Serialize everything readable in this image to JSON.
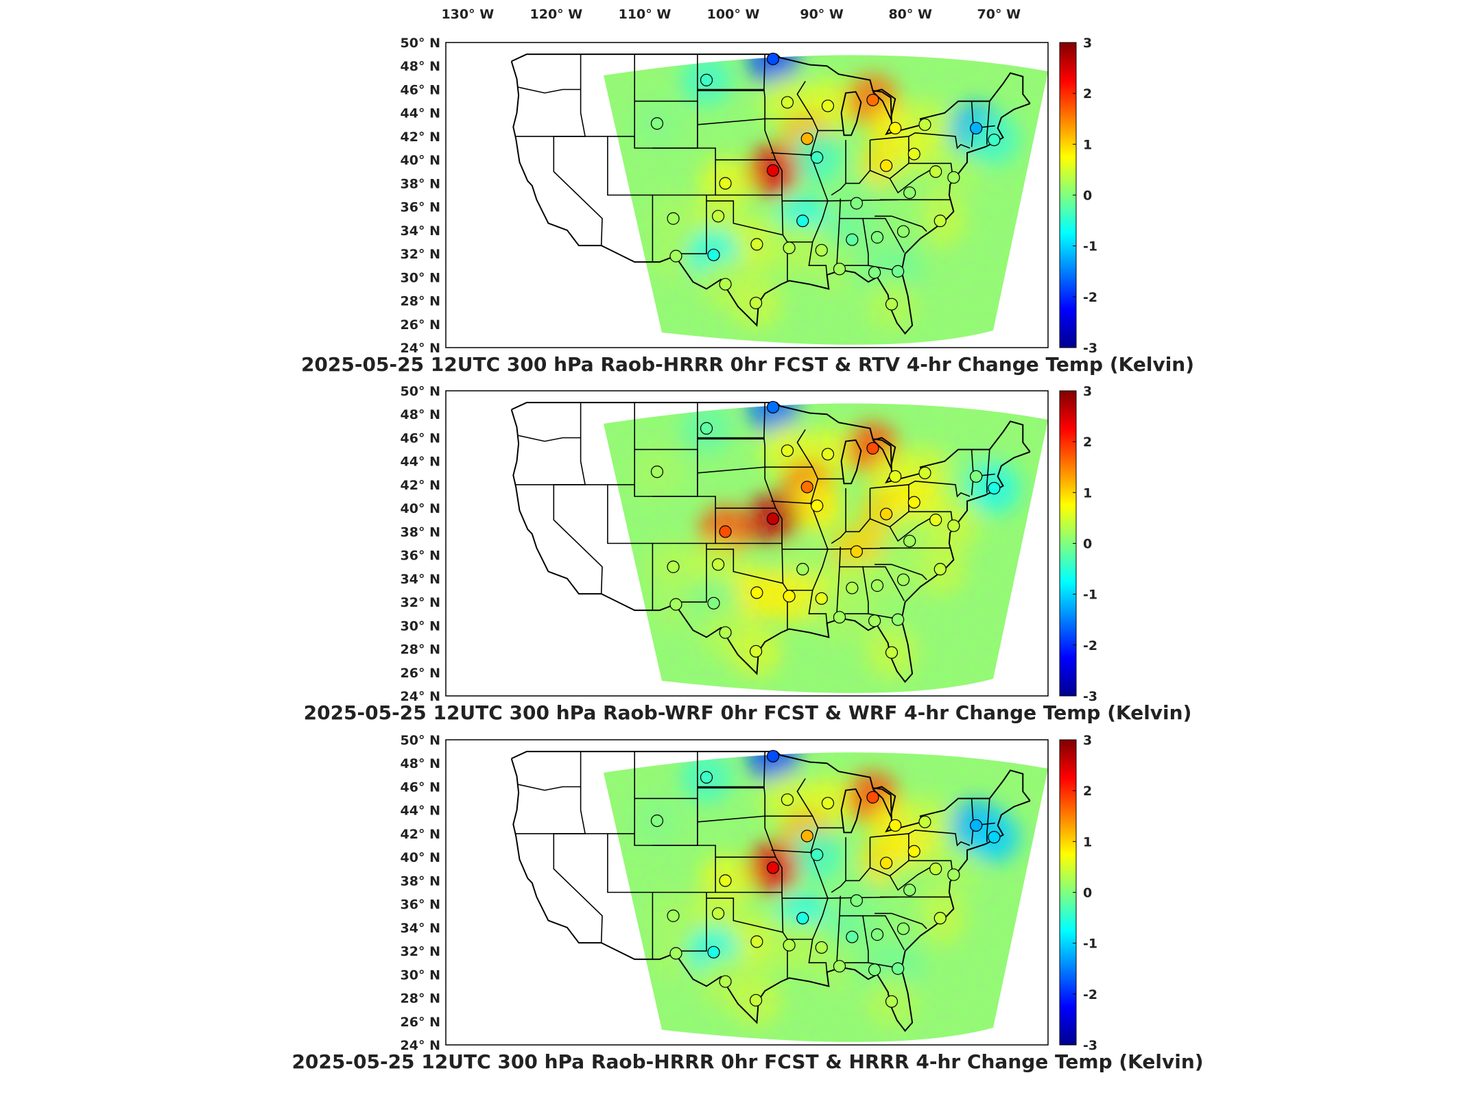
{
  "longitude_ticks": [
    "130° W",
    "120° W",
    "110° W",
    "100° W",
    "90° W",
    "80° W",
    "70° W"
  ],
  "latitude_ticks": [
    "50° N",
    "48° N",
    "46° N",
    "44° N",
    "42° N",
    "40° N",
    "38° N",
    "36° N",
    "34° N",
    "32° N",
    "30° N",
    "28° N",
    "26° N",
    "24° N"
  ],
  "colorbar": {
    "ticks": [
      "3",
      "2",
      "1",
      "0",
      "-1",
      "-2",
      "-3"
    ],
    "min": -3,
    "max": 3,
    "colormap": "jet"
  },
  "panels": [
    {
      "title": "2025-05-25 12UTC 300 hPa Raob-HRRR 0hr FCST & RTV 4-hr Change Temp (Kelvin)",
      "stations": [
        {
          "lon": -95.6,
          "lat": 48.6,
          "value": -1.8
        },
        {
          "lon": -103.0,
          "lat": 46.8,
          "value": -0.4
        },
        {
          "lon": -108.5,
          "lat": 43.1,
          "value": 0.0
        },
        {
          "lon": -94.0,
          "lat": 44.9,
          "value": 0.5
        },
        {
          "lon": -89.5,
          "lat": 44.6,
          "value": 0.6
        },
        {
          "lon": -84.5,
          "lat": 45.1,
          "value": 1.6
        },
        {
          "lon": -82.0,
          "lat": 42.7,
          "value": 0.8
        },
        {
          "lon": -78.7,
          "lat": 43.0,
          "value": 0.4
        },
        {
          "lon": -73.0,
          "lat": 42.7,
          "value": -1.2
        },
        {
          "lon": -71.0,
          "lat": 41.7,
          "value": -0.4
        },
        {
          "lon": -91.8,
          "lat": 41.8,
          "value": 1.2
        },
        {
          "lon": -90.7,
          "lat": 40.2,
          "value": -0.4
        },
        {
          "lon": -83.0,
          "lat": 39.5,
          "value": 0.9
        },
        {
          "lon": -79.9,
          "lat": 40.5,
          "value": 0.6
        },
        {
          "lon": -95.6,
          "lat": 39.1,
          "value": 2.4
        },
        {
          "lon": -100.9,
          "lat": 38.0,
          "value": 0.6
        },
        {
          "lon": -77.5,
          "lat": 39.0,
          "value": 0.4
        },
        {
          "lon": -75.5,
          "lat": 38.5,
          "value": 0.2
        },
        {
          "lon": -86.3,
          "lat": 36.3,
          "value": 0.0
        },
        {
          "lon": -80.4,
          "lat": 37.2,
          "value": 0.1
        },
        {
          "lon": -106.7,
          "lat": 35.0,
          "value": 0.2
        },
        {
          "lon": -101.7,
          "lat": 35.2,
          "value": 0.4
        },
        {
          "lon": -92.3,
          "lat": 34.8,
          "value": -0.6
        },
        {
          "lon": -77.0,
          "lat": 34.8,
          "value": 0.4
        },
        {
          "lon": -97.4,
          "lat": 32.8,
          "value": 0.5
        },
        {
          "lon": -93.8,
          "lat": 32.5,
          "value": 0.3
        },
        {
          "lon": -90.2,
          "lat": 32.3,
          "value": 0.3
        },
        {
          "lon": -86.8,
          "lat": 33.2,
          "value": -0.2
        },
        {
          "lon": -84.0,
          "lat": 33.4,
          "value": 0.0
        },
        {
          "lon": -81.1,
          "lat": 33.9,
          "value": 0.1
        },
        {
          "lon": -106.4,
          "lat": 31.8,
          "value": 0.2
        },
        {
          "lon": -102.2,
          "lat": 31.9,
          "value": -0.6
        },
        {
          "lon": -88.2,
          "lat": 30.7,
          "value": 0.2
        },
        {
          "lon": -84.3,
          "lat": 30.4,
          "value": 0.0
        },
        {
          "lon": -81.7,
          "lat": 30.5,
          "value": -0.1
        },
        {
          "lon": -100.9,
          "lat": 29.4,
          "value": 0.3
        },
        {
          "lon": -97.5,
          "lat": 27.8,
          "value": 0.4
        },
        {
          "lon": -82.4,
          "lat": 27.7,
          "value": 0.3
        }
      ]
    },
    {
      "title": "2025-05-25 12UTC 300 hPa Raob-WRF 0hr FCST & WRF 4-hr Change Temp (Kelvin)",
      "stations": [
        {
          "lon": -95.6,
          "lat": 48.6,
          "value": -1.6
        },
        {
          "lon": -103.0,
          "lat": 46.8,
          "value": -0.2
        },
        {
          "lon": -108.5,
          "lat": 43.1,
          "value": 0.2
        },
        {
          "lon": -94.0,
          "lat": 44.9,
          "value": 0.6
        },
        {
          "lon": -89.5,
          "lat": 44.6,
          "value": 0.6
        },
        {
          "lon": -84.5,
          "lat": 45.1,
          "value": 1.8
        },
        {
          "lon": -82.0,
          "lat": 42.7,
          "value": 0.6
        },
        {
          "lon": -78.7,
          "lat": 43.0,
          "value": 0.5
        },
        {
          "lon": -73.0,
          "lat": 42.7,
          "value": 0.0
        },
        {
          "lon": -71.0,
          "lat": 41.7,
          "value": -0.6
        },
        {
          "lon": -91.8,
          "lat": 41.8,
          "value": 1.6
        },
        {
          "lon": -90.7,
          "lat": 40.2,
          "value": 0.8
        },
        {
          "lon": -83.0,
          "lat": 39.5,
          "value": 1.0
        },
        {
          "lon": -79.9,
          "lat": 40.5,
          "value": 0.8
        },
        {
          "lon": -95.6,
          "lat": 39.1,
          "value": 2.6
        },
        {
          "lon": -100.9,
          "lat": 38.0,
          "value": 1.8
        },
        {
          "lon": -77.5,
          "lat": 39.0,
          "value": 0.6
        },
        {
          "lon": -75.5,
          "lat": 38.5,
          "value": 0.4
        },
        {
          "lon": -86.3,
          "lat": 36.3,
          "value": 1.0
        },
        {
          "lon": -80.4,
          "lat": 37.2,
          "value": 0.2
        },
        {
          "lon": -106.7,
          "lat": 35.0,
          "value": 0.3
        },
        {
          "lon": -101.7,
          "lat": 35.2,
          "value": 0.4
        },
        {
          "lon": -92.3,
          "lat": 34.8,
          "value": 0.2
        },
        {
          "lon": -77.0,
          "lat": 34.8,
          "value": 0.4
        },
        {
          "lon": -97.4,
          "lat": 32.8,
          "value": 0.8
        },
        {
          "lon": -93.8,
          "lat": 32.5,
          "value": 0.8
        },
        {
          "lon": -90.2,
          "lat": 32.3,
          "value": 0.6
        },
        {
          "lon": -86.8,
          "lat": 33.2,
          "value": 0.3
        },
        {
          "lon": -84.0,
          "lat": 33.4,
          "value": 0.2
        },
        {
          "lon": -81.1,
          "lat": 33.9,
          "value": 0.2
        },
        {
          "lon": -106.4,
          "lat": 31.8,
          "value": 0.2
        },
        {
          "lon": -102.2,
          "lat": 31.9,
          "value": 0.0
        },
        {
          "lon": -88.2,
          "lat": 30.7,
          "value": 0.2
        },
        {
          "lon": -84.3,
          "lat": 30.4,
          "value": 0.2
        },
        {
          "lon": -81.7,
          "lat": 30.5,
          "value": 0.1
        },
        {
          "lon": -100.9,
          "lat": 29.4,
          "value": 0.3
        },
        {
          "lon": -97.5,
          "lat": 27.8,
          "value": 0.5
        },
        {
          "lon": -82.4,
          "lat": 27.7,
          "value": 0.4
        }
      ]
    },
    {
      "title": "2025-05-25 12UTC 300 hPa Raob-HRRR 0hr FCST & HRRR 4-hr Change Temp (Kelvin)",
      "stations": [
        {
          "lon": -95.6,
          "lat": 48.6,
          "value": -1.8
        },
        {
          "lon": -103.0,
          "lat": 46.8,
          "value": -0.4
        },
        {
          "lon": -108.5,
          "lat": 43.1,
          "value": 0.0
        },
        {
          "lon": -94.0,
          "lat": 44.9,
          "value": 0.5
        },
        {
          "lon": -89.5,
          "lat": 44.6,
          "value": 0.6
        },
        {
          "lon": -84.5,
          "lat": 45.1,
          "value": 1.8
        },
        {
          "lon": -82.0,
          "lat": 42.7,
          "value": 0.8
        },
        {
          "lon": -78.7,
          "lat": 43.0,
          "value": 0.4
        },
        {
          "lon": -73.0,
          "lat": 42.7,
          "value": -1.2
        },
        {
          "lon": -71.0,
          "lat": 41.7,
          "value": -1.0
        },
        {
          "lon": -91.8,
          "lat": 41.8,
          "value": 1.2
        },
        {
          "lon": -90.7,
          "lat": 40.2,
          "value": -0.4
        },
        {
          "lon": -83.0,
          "lat": 39.5,
          "value": 0.9
        },
        {
          "lon": -79.9,
          "lat": 40.5,
          "value": 0.8
        },
        {
          "lon": -95.6,
          "lat": 39.1,
          "value": 2.4
        },
        {
          "lon": -100.9,
          "lat": 38.0,
          "value": 0.6
        },
        {
          "lon": -77.5,
          "lat": 39.0,
          "value": 0.4
        },
        {
          "lon": -75.5,
          "lat": 38.5,
          "value": 0.2
        },
        {
          "lon": -86.3,
          "lat": 36.3,
          "value": 0.0
        },
        {
          "lon": -80.4,
          "lat": 37.2,
          "value": 0.1
        },
        {
          "lon": -106.7,
          "lat": 35.0,
          "value": 0.2
        },
        {
          "lon": -101.7,
          "lat": 35.2,
          "value": 0.4
        },
        {
          "lon": -92.3,
          "lat": 34.8,
          "value": -0.6
        },
        {
          "lon": -77.0,
          "lat": 34.8,
          "value": 0.4
        },
        {
          "lon": -97.4,
          "lat": 32.8,
          "value": 0.5
        },
        {
          "lon": -93.8,
          "lat": 32.5,
          "value": 0.3
        },
        {
          "lon": -90.2,
          "lat": 32.3,
          "value": 0.3
        },
        {
          "lon": -86.8,
          "lat": 33.2,
          "value": -0.2
        },
        {
          "lon": -84.0,
          "lat": 33.4,
          "value": 0.0
        },
        {
          "lon": -81.1,
          "lat": 33.9,
          "value": 0.1
        },
        {
          "lon": -106.4,
          "lat": 31.8,
          "value": 0.2
        },
        {
          "lon": -102.2,
          "lat": 31.9,
          "value": -0.6
        },
        {
          "lon": -88.2,
          "lat": 30.7,
          "value": 0.2
        },
        {
          "lon": -84.3,
          "lat": 30.4,
          "value": 0.0
        },
        {
          "lon": -81.7,
          "lat": 30.5,
          "value": -0.1
        },
        {
          "lon": -100.9,
          "lat": 29.4,
          "value": 0.3
        },
        {
          "lon": -97.5,
          "lat": 27.8,
          "value": 0.4
        },
        {
          "lon": -82.4,
          "lat": 27.7,
          "value": 0.3
        }
      ]
    }
  ]
}
